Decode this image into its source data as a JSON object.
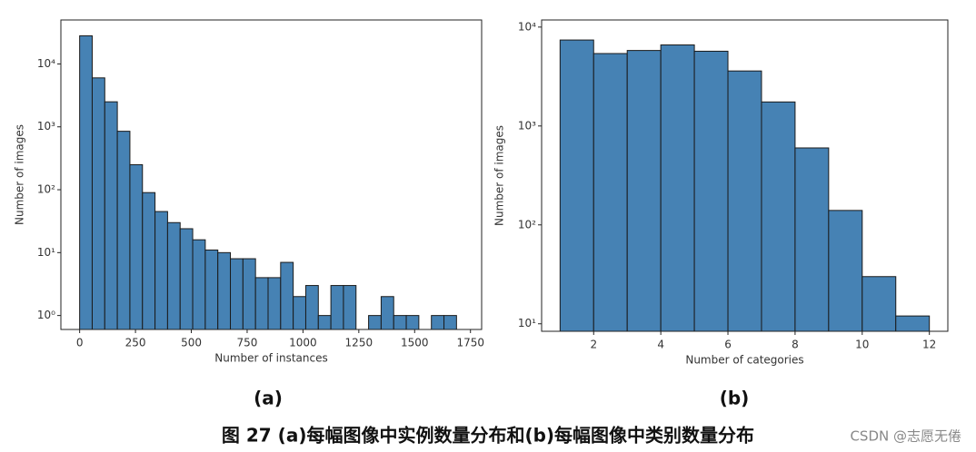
{
  "chart_data": [
    {
      "type": "histogram",
      "label": "(a)",
      "xlabel": "Number of instances",
      "ylabel": "Number of images",
      "bins": [
        0,
        56.25,
        112.5,
        168.75,
        225,
        281.25,
        337.5,
        393.75,
        450,
        506.25,
        562.5,
        618.75,
        675,
        731.25,
        787.5,
        843.75,
        900,
        956.25,
        1012.5,
        1068.75,
        1125,
        1181.25,
        1237.5,
        1293.75,
        1350,
        1406.25,
        1462.5,
        1518.75,
        1575,
        1631.25,
        1687.5
      ],
      "values": [
        28000,
        6000,
        2500,
        850,
        250,
        90,
        45,
        30,
        24,
        16,
        11,
        10,
        8,
        8,
        4,
        4,
        7,
        2,
        3,
        1,
        3,
        3,
        0,
        1,
        2,
        1,
        1,
        0,
        1,
        1
      ],
      "color": "#4682b4",
      "edgecolor": "#1a1a1a",
      "yscale": "log",
      "xlim": [
        -84,
        1800
      ],
      "xticks": [
        0,
        250,
        500,
        750,
        1000,
        1250,
        1500,
        1750
      ],
      "ylim": [
        0.6,
        50000
      ],
      "yticks": [
        {
          "value": 1,
          "label": "10⁰"
        },
        {
          "value": 10,
          "label": "10¹"
        },
        {
          "value": 100,
          "label": "10²"
        },
        {
          "value": 1000,
          "label": "10³"
        },
        {
          "value": 10000,
          "label": "10⁴"
        }
      ]
    },
    {
      "type": "histogram",
      "label": "(b)",
      "xlabel": "Number of categories",
      "ylabel": "Number of images",
      "bins": [
        1,
        2,
        3,
        4,
        5,
        6,
        7,
        8,
        9,
        10,
        11,
        12
      ],
      "values": [
        7400,
        5400,
        5800,
        6600,
        5700,
        3600,
        1750,
        600,
        140,
        30,
        12
      ],
      "color": "#4682b4",
      "edgecolor": "#1a1a1a",
      "yscale": "log",
      "xlim": [
        0.45,
        12.55
      ],
      "xticks": [
        2,
        4,
        6,
        8,
        10,
        12
      ],
      "ylim": [
        8.4,
        11800
      ],
      "yticks": [
        {
          "value": 10,
          "label": "10¹"
        },
        {
          "value": 100,
          "label": "10²"
        },
        {
          "value": 1000,
          "label": "10³"
        },
        {
          "value": 10000,
          "label": "10⁴"
        }
      ]
    }
  ],
  "figure_caption": "图 27 (a)每幅图像中实例数量分布和(b)每幅图像中类别数量分布",
  "watermark": "CSDN @志愿无倦"
}
